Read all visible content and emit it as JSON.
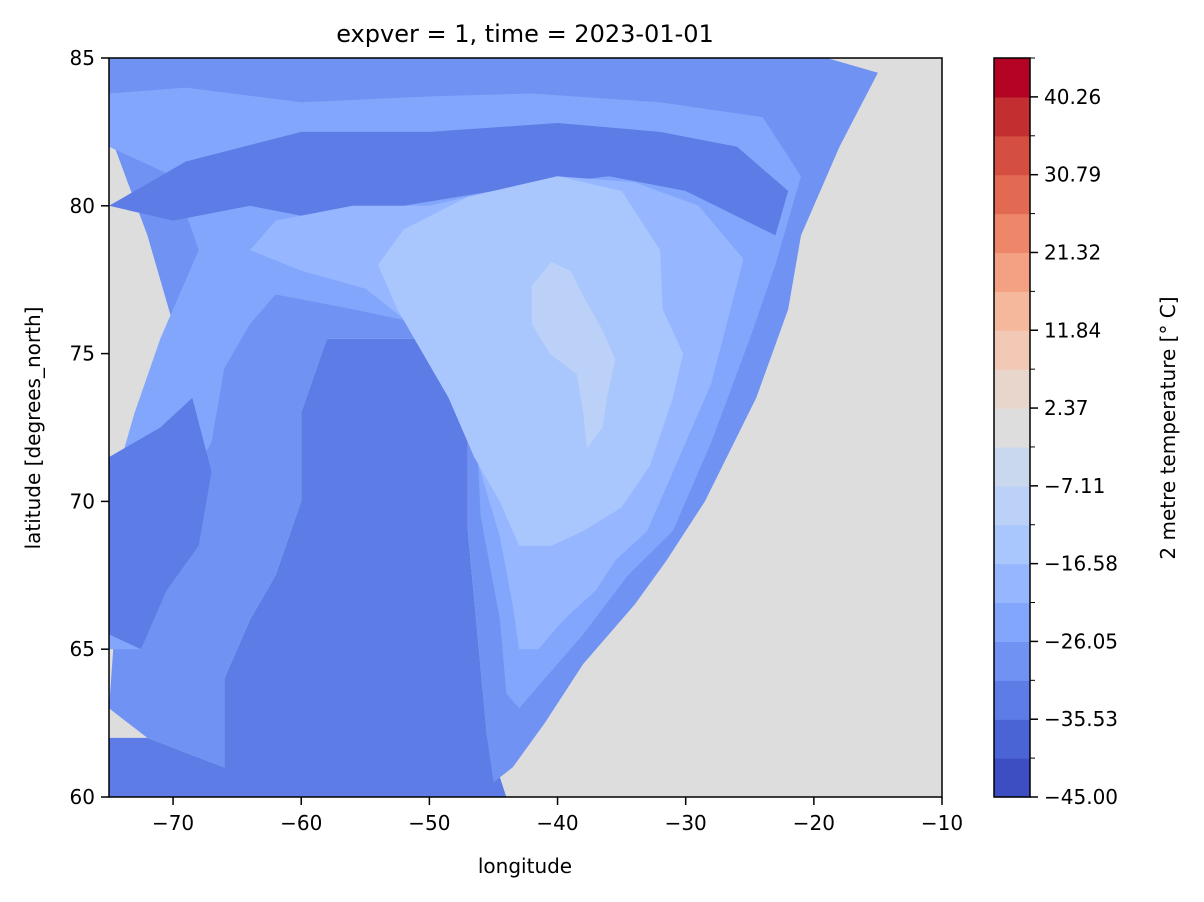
{
  "chart_data": {
    "type": "heatmap",
    "subtype": "filled-contour",
    "title": "expver = 1, time = 2023-01-01",
    "xlabel": "longitude",
    "ylabel": "latitude [degrees_north]",
    "xlim": [
      -75,
      -10
    ],
    "ylim": [
      60,
      85
    ],
    "x_ticks": [
      -70,
      -60,
      -50,
      -40,
      -30,
      -20,
      -10
    ],
    "y_ticks": [
      60,
      65,
      70,
      75,
      80,
      85
    ],
    "grid": false,
    "colormap": "coolwarm",
    "colorbar": {
      "label": "2 metre temperature [° C]",
      "min": -45.0,
      "max": 45.0,
      "ticks": [
        "−45.00",
        "−35.53",
        "−26.05",
        "−16.58",
        "−7.11",
        "2.37",
        "11.84",
        "21.32",
        "30.79",
        "40.26"
      ],
      "colors": [
        "#3c4ec2",
        "#4b64d5",
        "#5d7ce6",
        "#6f92f3",
        "#82a6fb",
        "#96b7ff",
        "#aac7fd",
        "#bbd1f8",
        "#cad8ee",
        "#dddddd",
        "#e8d6cc",
        "#f2c9b4",
        "#f6b89c",
        "#f4a183",
        "#ee8669",
        "#e36a52",
        "#d44e41",
        "#c32e31",
        "#b40426"
      ]
    },
    "fields": [
      {
        "level": 2,
        "polygon": [
          [
            -75,
            60
          ],
          [
            -75,
            62
          ],
          [
            -72,
            62
          ],
          [
            -66,
            61
          ],
          [
            -66,
            64
          ],
          [
            -64,
            66
          ],
          [
            -62,
            67.5
          ],
          [
            -60,
            70
          ],
          [
            -60,
            73
          ],
          [
            -58,
            75.5
          ],
          [
            -50,
            75.5
          ],
          [
            -47,
            73.5
          ],
          [
            -47,
            69
          ],
          [
            -45.5,
            62
          ],
          [
            -44,
            60
          ]
        ]
      },
      {
        "level": 3,
        "polygon": [
          [
            -75,
            63
          ],
          [
            -74,
            69
          ],
          [
            -72,
            73
          ],
          [
            -70,
            76
          ],
          [
            -72,
            79
          ],
          [
            -75,
            82.5
          ],
          [
            -75,
            85
          ],
          [
            -19,
            85
          ],
          [
            -15,
            84.5
          ],
          [
            -18,
            82
          ],
          [
            -21,
            79
          ],
          [
            -22,
            76.5
          ],
          [
            -24.5,
            73.5
          ],
          [
            -28.5,
            70
          ],
          [
            -31.5,
            68
          ],
          [
            -34,
            66.5
          ],
          [
            -38,
            64.5
          ],
          [
            -41,
            62.5
          ],
          [
            -43.5,
            61
          ],
          [
            -45,
            60.5
          ],
          [
            -45.5,
            62
          ],
          [
            -47,
            69
          ],
          [
            -47,
            73.5
          ],
          [
            -50,
            75.5
          ],
          [
            -58,
            75.5
          ],
          [
            -60,
            73
          ],
          [
            -60,
            70
          ],
          [
            -62,
            67.5
          ],
          [
            -64,
            66
          ],
          [
            -66,
            64
          ],
          [
            -66,
            61
          ],
          [
            -72,
            62
          ]
        ]
      },
      {
        "level": 4,
        "polygon": [
          [
            -75,
            70
          ],
          [
            -73,
            73
          ],
          [
            -71,
            75.5
          ],
          [
            -68,
            78.5
          ],
          [
            -70,
            81
          ],
          [
            -75,
            82
          ],
          [
            -75,
            83.8
          ],
          [
            -69,
            84
          ],
          [
            -60,
            83.5
          ],
          [
            -50,
            83.7
          ],
          [
            -42,
            83.8
          ],
          [
            -32,
            83.5
          ],
          [
            -24,
            83
          ],
          [
            -21,
            81
          ],
          [
            -23,
            78
          ],
          [
            -25,
            75.5
          ],
          [
            -28,
            72
          ],
          [
            -31,
            69
          ],
          [
            -34.5,
            67.5
          ],
          [
            -38,
            65.5
          ],
          [
            -41,
            64
          ],
          [
            -43,
            63
          ],
          [
            -44,
            63.5
          ],
          [
            -44.5,
            66
          ],
          [
            -46,
            69.5
          ],
          [
            -46.5,
            74
          ],
          [
            -50.5,
            76
          ],
          [
            -56,
            76.5
          ],
          [
            -62,
            77
          ],
          [
            -64,
            76
          ],
          [
            -66,
            74.5
          ],
          [
            -67,
            72
          ],
          [
            -69,
            70.5
          ],
          [
            -70.5,
            67
          ],
          [
            -72.5,
            65
          ],
          [
            -75,
            65
          ]
        ]
      },
      {
        "level": 2,
        "polygon": [
          [
            -75,
            71.5
          ],
          [
            -71,
            72.5
          ],
          [
            -68.5,
            73.5
          ],
          [
            -67,
            71
          ],
          [
            -68,
            68.5
          ],
          [
            -70.5,
            67
          ],
          [
            -72.5,
            65
          ],
          [
            -75,
            65.5
          ]
        ]
      },
      {
        "level": 2,
        "polygon": [
          [
            -75,
            80
          ],
          [
            -69,
            81.5
          ],
          [
            -60,
            82.5
          ],
          [
            -50,
            82.5
          ],
          [
            -40,
            82.8
          ],
          [
            -32,
            82.5
          ],
          [
            -26,
            82
          ],
          [
            -22,
            80.5
          ],
          [
            -23,
            79
          ],
          [
            -30,
            80.5
          ],
          [
            -36,
            81
          ],
          [
            -45,
            80.5
          ],
          [
            -52,
            80
          ],
          [
            -58,
            79.5
          ],
          [
            -64,
            80
          ],
          [
            -70,
            79.5
          ]
        ]
      },
      {
        "level": 5,
        "polygon": [
          [
            -64,
            78.5
          ],
          [
            -62,
            79.5
          ],
          [
            -56,
            80
          ],
          [
            -50,
            80
          ],
          [
            -45,
            80.5
          ],
          [
            -40,
            81
          ],
          [
            -34,
            80.8
          ],
          [
            -29,
            80
          ],
          [
            -25.5,
            78.2
          ],
          [
            -26.5,
            76.5
          ],
          [
            -28,
            74
          ],
          [
            -30.5,
            71.5
          ],
          [
            -33,
            69
          ],
          [
            -35.5,
            68
          ],
          [
            -37,
            67
          ],
          [
            -39.5,
            66
          ],
          [
            -41.5,
            65
          ],
          [
            -43,
            65
          ],
          [
            -43.5,
            66.5
          ],
          [
            -44.5,
            68.8
          ],
          [
            -46,
            71
          ],
          [
            -47.5,
            73.2
          ],
          [
            -50,
            75.5
          ],
          [
            -55,
            77.2
          ],
          [
            -60,
            77.8
          ]
        ]
      },
      {
        "level": 6,
        "polygon": [
          [
            -54,
            78
          ],
          [
            -52,
            79.2
          ],
          [
            -47,
            80.3
          ],
          [
            -40,
            81
          ],
          [
            -35,
            80.5
          ],
          [
            -32,
            78.5
          ],
          [
            -31.8,
            76.5
          ],
          [
            -30.2,
            75
          ],
          [
            -31,
            73.5
          ],
          [
            -32.8,
            71.2
          ],
          [
            -35,
            69.8
          ],
          [
            -38,
            69
          ],
          [
            -40.5,
            68.5
          ],
          [
            -43,
            68.5
          ],
          [
            -44.5,
            70
          ],
          [
            -46.5,
            71.5
          ],
          [
            -48.5,
            73.5
          ],
          [
            -50.5,
            75
          ],
          [
            -52.5,
            76.5
          ]
        ]
      },
      {
        "level": 7,
        "polygon": [
          [
            -42,
            77.3
          ],
          [
            -40.5,
            78.1
          ],
          [
            -39,
            77.8
          ],
          [
            -37.8,
            76.8
          ],
          [
            -36.5,
            75.8
          ],
          [
            -35.5,
            74.8
          ],
          [
            -36.1,
            73.6
          ],
          [
            -36.5,
            72.5
          ],
          [
            -37.7,
            71.8
          ],
          [
            -38,
            73
          ],
          [
            -38.5,
            74.3
          ],
          [
            -40.6,
            75
          ],
          [
            -42,
            76
          ]
        ]
      }
    ]
  }
}
